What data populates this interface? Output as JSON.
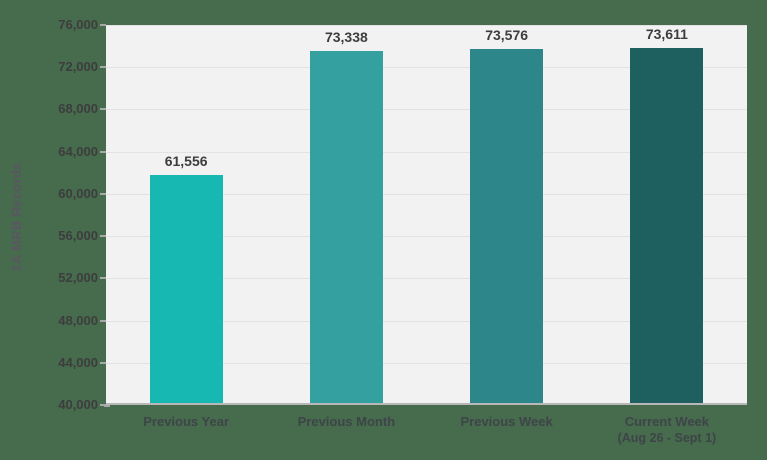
{
  "chart_data": {
    "type": "bar",
    "title": "",
    "ylabel": "1A MRB Records",
    "xlabel": "",
    "categories": [
      "Previous Year",
      "Previous Month",
      "Previous Week",
      "Current Week"
    ],
    "category_sublabels": [
      "",
      "",
      "",
      "(Aug 26 - Sept 1)"
    ],
    "values": [
      61556,
      73338,
      73576,
      73611
    ],
    "value_labels": [
      "61,556",
      "73,338",
      "73,576",
      "73,611"
    ],
    "bar_colors": [
      "#17b8b1",
      "#34a0a0",
      "#2d8689",
      "#1e6060"
    ],
    "ylim": [
      40000,
      76000
    ],
    "ytick_step": 4000,
    "ytick_labels": [
      "76,000",
      "72,000",
      "68,000",
      "64,000",
      "60,000",
      "56,000",
      "52,000",
      "48,000",
      "44,000",
      "40,000"
    ],
    "grid": true,
    "legend": "none"
  },
  "colors": {
    "page_background": "#466b4d",
    "plot_background": "#f2f2f2",
    "gridline": "#e2e2e2",
    "axis_line": "#b8b8b8",
    "tick_text": "#3d3d3d",
    "value_label_text": "#3d3d3d",
    "x_label_text": "#3e4548",
    "y_axis_title_text": "#5a5662"
  }
}
